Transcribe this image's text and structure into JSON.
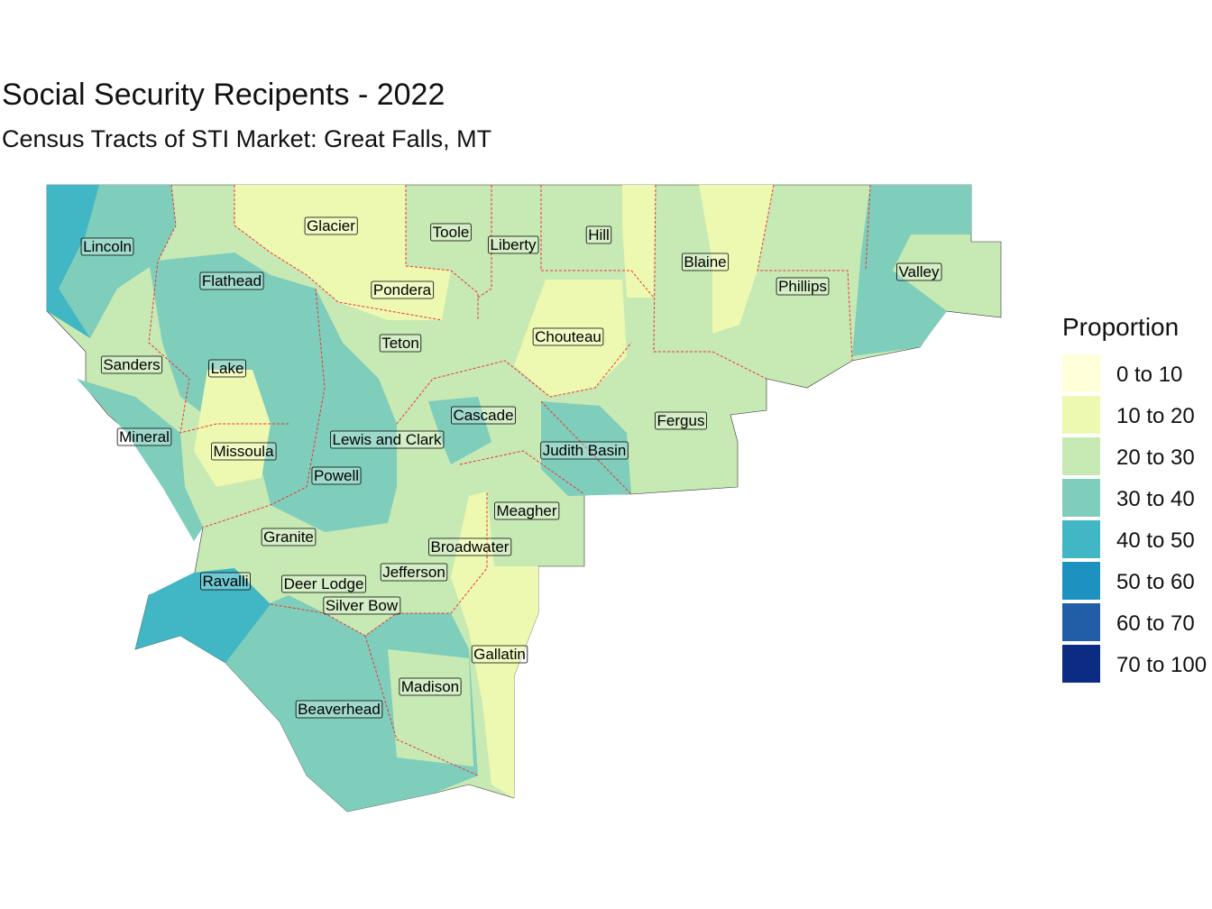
{
  "header": {
    "title": "Social Security Recipents - 2022",
    "subtitle": "Census Tracts of STI Market: Great Falls, MT"
  },
  "legend": {
    "title": "Proportion",
    "items": [
      {
        "label": "0 to 10",
        "color": "#ffffd9"
      },
      {
        "label": "10 to 20",
        "color": "#edf8b1"
      },
      {
        "label": "20 to 30",
        "color": "#c7e9b4"
      },
      {
        "label": "30 to 40",
        "color": "#7fcdbb"
      },
      {
        "label": "40 to 50",
        "color": "#41b6c4"
      },
      {
        "label": "50 to 60",
        "color": "#1d91c0"
      },
      {
        "label": "60 to 70",
        "color": "#225ea8"
      },
      {
        "label": "70 to 100",
        "color": "#0c2c84"
      }
    ]
  },
  "counties": [
    "Lincoln",
    "Glacier",
    "Toole",
    "Liberty",
    "Hill",
    "Blaine",
    "Phillips",
    "Valley",
    "Flathead",
    "Pondera",
    "Teton",
    "Chouteau",
    "Sanders",
    "Lake",
    "Cascade",
    "Fergus",
    "Mineral",
    "Lewis and Clark",
    "Missoula",
    "Judith Basin",
    "Powell",
    "Meagher",
    "Granite",
    "Broadwater",
    "Ravalli",
    "Jefferson",
    "Deer Lodge",
    "Silver Bow",
    "Gallatin",
    "Madison",
    "Beaverhead"
  ]
}
